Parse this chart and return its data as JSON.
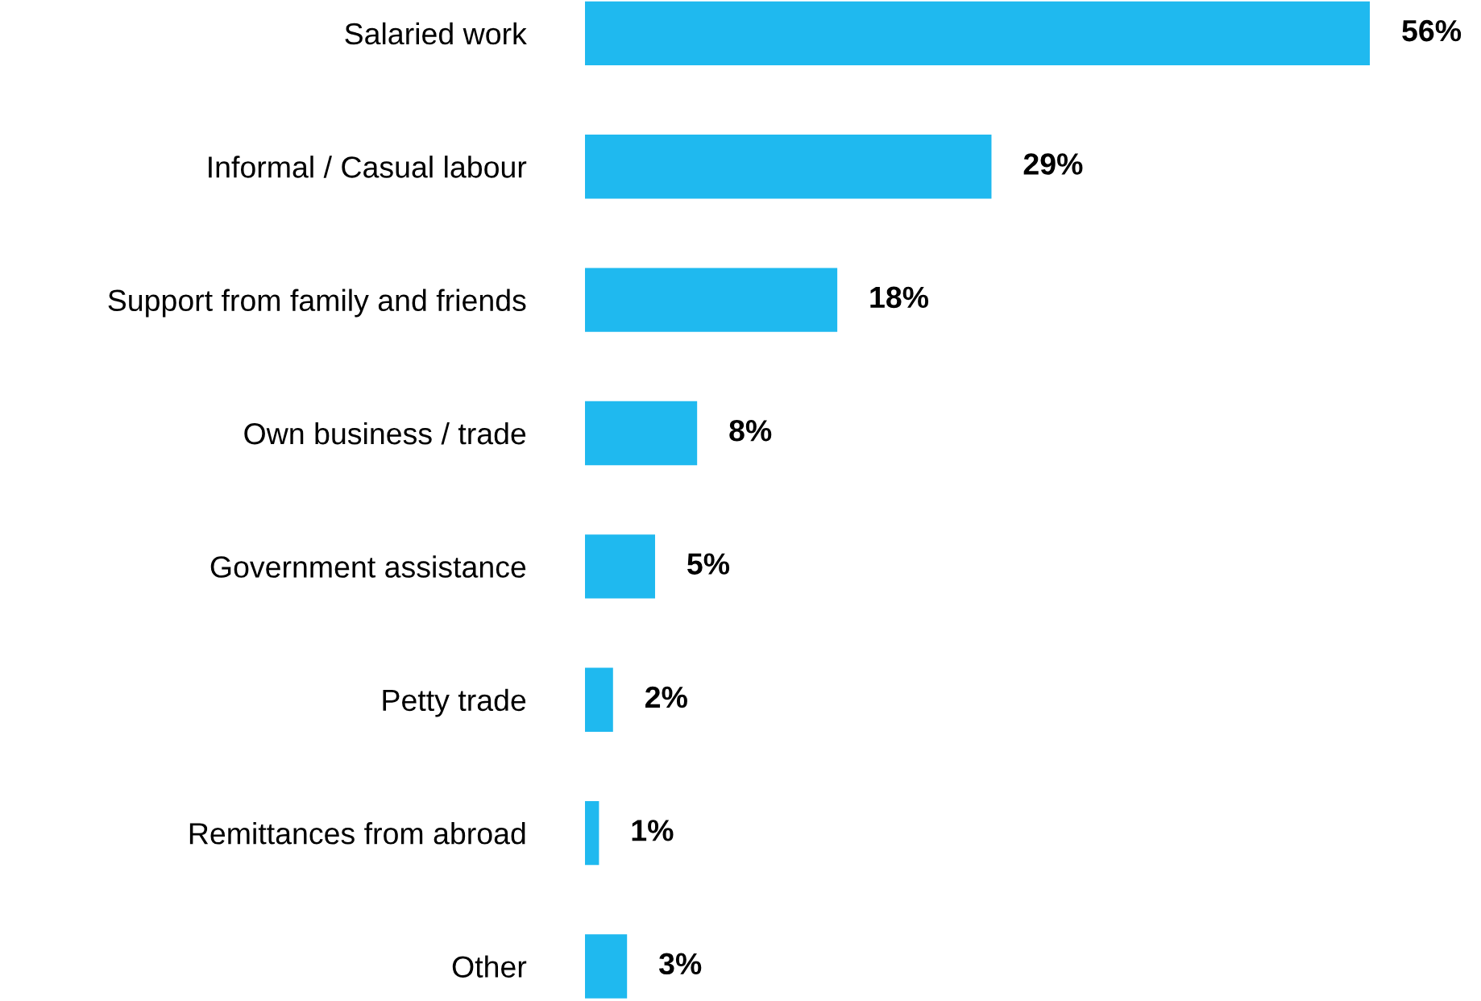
{
  "chart_data": {
    "type": "bar",
    "orientation": "horizontal",
    "categories": [
      "Salaried work",
      "Informal / Casual labour",
      "Support from family and friends",
      "Own business / trade",
      "Government assistance",
      "Petty trade",
      "Remittances from abroad",
      "Other"
    ],
    "values": [
      56,
      29,
      18,
      8,
      5,
      2,
      1,
      3
    ],
    "value_labels": [
      "56%",
      "29%",
      "18%",
      "8%",
      "5%",
      "2%",
      "1%",
      "3%"
    ],
    "color": "#1fb9ef",
    "xlim": [
      0,
      56
    ],
    "grid": false,
    "legend": false
  }
}
